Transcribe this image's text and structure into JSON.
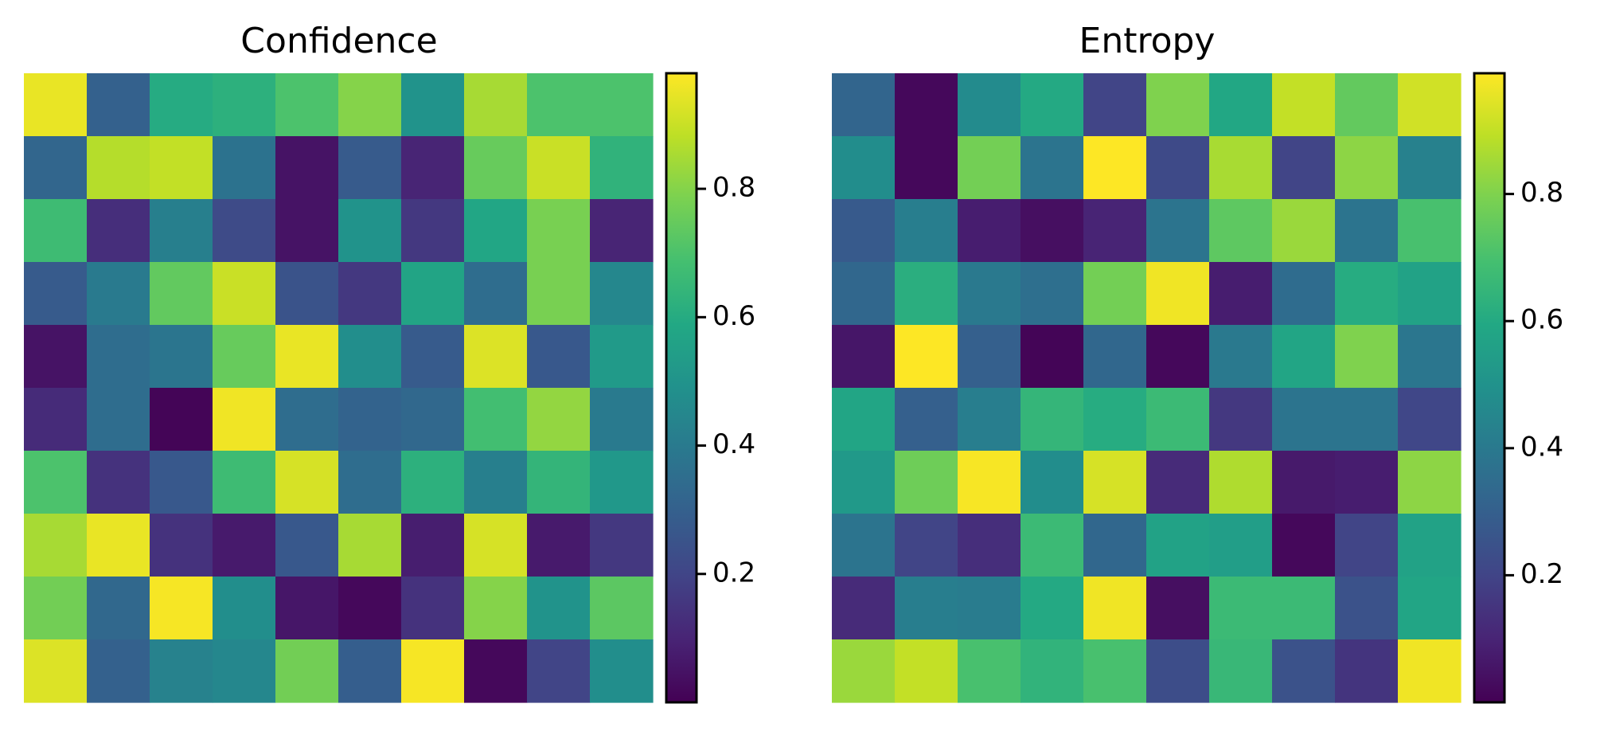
{
  "chart_data": [
    {
      "type": "heatmap",
      "title": "Confidence",
      "colormap": "viridis",
      "vmin": 0.0,
      "vmax": 0.98,
      "colorbar_ticks": [
        0.2,
        0.4,
        0.6,
        0.8
      ],
      "colorbar_tick_labels": [
        "0.2",
        "0.4",
        "0.6",
        "0.8"
      ],
      "values": [
        [
          0.95,
          0.3,
          0.6,
          0.62,
          0.7,
          0.8,
          0.5,
          0.85,
          0.7,
          0.7
        ],
        [
          0.32,
          0.87,
          0.89,
          0.37,
          0.05,
          0.28,
          0.1,
          0.75,
          0.9,
          0.63
        ],
        [
          0.67,
          0.13,
          0.42,
          0.22,
          0.05,
          0.5,
          0.16,
          0.58,
          0.78,
          0.1
        ],
        [
          0.28,
          0.4,
          0.74,
          0.9,
          0.25,
          0.16,
          0.57,
          0.35,
          0.78,
          0.45
        ],
        [
          0.05,
          0.35,
          0.38,
          0.75,
          0.95,
          0.48,
          0.28,
          0.93,
          0.27,
          0.53
        ],
        [
          0.12,
          0.35,
          0.01,
          0.96,
          0.35,
          0.31,
          0.33,
          0.68,
          0.82,
          0.4
        ],
        [
          0.7,
          0.14,
          0.27,
          0.67,
          0.92,
          0.35,
          0.62,
          0.42,
          0.64,
          0.52
        ],
        [
          0.85,
          0.95,
          0.14,
          0.07,
          0.27,
          0.85,
          0.08,
          0.92,
          0.07,
          0.16
        ],
        [
          0.77,
          0.33,
          0.97,
          0.48,
          0.06,
          0.02,
          0.14,
          0.8,
          0.5,
          0.73
        ],
        [
          0.93,
          0.3,
          0.43,
          0.45,
          0.77,
          0.29,
          0.97,
          0.02,
          0.2,
          0.48
        ]
      ]
    },
    {
      "type": "heatmap",
      "title": "Entropy",
      "colormap": "viridis",
      "vmin": 0.0,
      "vmax": 0.99,
      "colorbar_ticks": [
        0.2,
        0.4,
        0.6,
        0.8
      ],
      "colorbar_tick_labels": [
        "0.2",
        "0.4",
        "0.6",
        "0.8"
      ],
      "values": [
        [
          0.32,
          0.02,
          0.47,
          0.6,
          0.2,
          0.8,
          0.59,
          0.9,
          0.75,
          0.92
        ],
        [
          0.48,
          0.02,
          0.78,
          0.38,
          0.99,
          0.22,
          0.86,
          0.2,
          0.82,
          0.43
        ],
        [
          0.28,
          0.42,
          0.08,
          0.04,
          0.1,
          0.38,
          0.74,
          0.84,
          0.38,
          0.7
        ],
        [
          0.33,
          0.62,
          0.4,
          0.36,
          0.78,
          0.97,
          0.08,
          0.35,
          0.61,
          0.57
        ],
        [
          0.06,
          0.99,
          0.3,
          0.01,
          0.33,
          0.02,
          0.4,
          0.58,
          0.8,
          0.39
        ],
        [
          0.58,
          0.3,
          0.42,
          0.65,
          0.61,
          0.67,
          0.16,
          0.38,
          0.38,
          0.21
        ],
        [
          0.53,
          0.77,
          0.98,
          0.48,
          0.93,
          0.12,
          0.87,
          0.07,
          0.08,
          0.82
        ],
        [
          0.38,
          0.2,
          0.13,
          0.67,
          0.33,
          0.57,
          0.55,
          0.02,
          0.2,
          0.57
        ],
        [
          0.12,
          0.42,
          0.41,
          0.6,
          0.97,
          0.04,
          0.67,
          0.67,
          0.25,
          0.58
        ],
        [
          0.84,
          0.9,
          0.7,
          0.64,
          0.7,
          0.23,
          0.66,
          0.25,
          0.15,
          0.97
        ]
      ]
    }
  ]
}
